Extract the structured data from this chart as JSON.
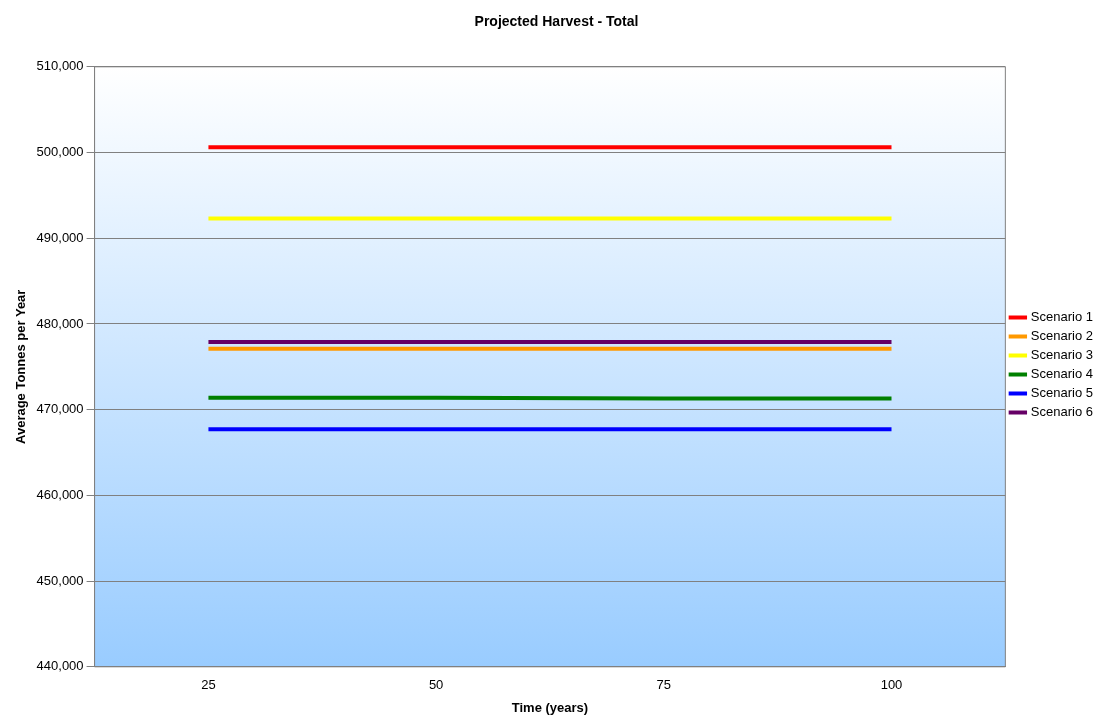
{
  "chart_data": {
    "type": "line",
    "title": "Projected Harvest - Total",
    "xlabel": "Time (years)",
    "ylabel": "Average Tonnes per Year",
    "categories": [
      "25",
      "50",
      "75",
      "100"
    ],
    "series": [
      {
        "name": "Scenario 1",
        "color": "#ff0000",
        "values": [
          500600,
          500600,
          500600,
          500600
        ]
      },
      {
        "name": "Scenario 2",
        "color": "#ff9900",
        "values": [
          477100,
          477100,
          477100,
          477100
        ]
      },
      {
        "name": "Scenario 3",
        "color": "#ffff00",
        "values": [
          492300,
          492300,
          492300,
          492300
        ]
      },
      {
        "name": "Scenario 4",
        "color": "#008000",
        "values": [
          471400,
          471400,
          471300,
          471300
        ]
      },
      {
        "name": "Scenario 5",
        "color": "#0000ff",
        "values": [
          467700,
          467700,
          467700,
          467700
        ]
      },
      {
        "name": "Scenario 6",
        "color": "#660066",
        "values": [
          477900,
          477900,
          477900,
          477900
        ]
      }
    ],
    "ylim": [
      440000,
      510000
    ],
    "yticks": [
      {
        "value": 440000,
        "label": "440,000"
      },
      {
        "value": 450000,
        "label": "450,000"
      },
      {
        "value": 460000,
        "label": "460,000"
      },
      {
        "value": 470000,
        "label": "470,000"
      },
      {
        "value": 480000,
        "label": "480,000"
      },
      {
        "value": 490000,
        "label": "490,000"
      },
      {
        "value": 500000,
        "label": "500,000"
      },
      {
        "value": 510000,
        "label": "510,000"
      }
    ],
    "grid": "y",
    "legend": "right",
    "marker": "none",
    "line_style": "solid"
  }
}
